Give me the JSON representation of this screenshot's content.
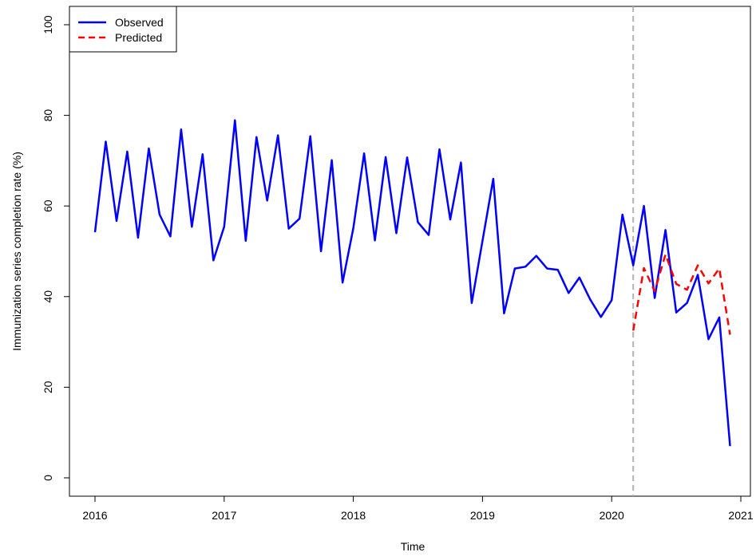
{
  "chart_data": {
    "type": "line",
    "xlabel": "Time",
    "ylabel": "Immunization series completion rate (%)",
    "xlim": [
      2016,
      2021
    ],
    "ylim": [
      0,
      100
    ],
    "x_ticks": [
      "2016",
      "2017",
      "2018",
      "2019",
      "2020",
      "2021"
    ],
    "y_ticks": [
      "0",
      "20",
      "40",
      "60",
      "80",
      "100"
    ],
    "vline": {
      "x": 2020.1667,
      "style": "dashed",
      "color": "#b3b3b3"
    },
    "legend": {
      "position": "top-left"
    },
    "series": [
      {
        "name": "Observed",
        "color": "#0000ff",
        "style": "solid",
        "x": [
          2016.0,
          2016.0833,
          2016.1667,
          2016.25,
          2016.3333,
          2016.4167,
          2016.5,
          2016.5833,
          2016.6667,
          2016.75,
          2016.8333,
          2016.9167,
          2017.0,
          2017.0833,
          2017.1667,
          2017.25,
          2017.3333,
          2017.4167,
          2017.5,
          2017.5833,
          2017.6667,
          2017.75,
          2017.8333,
          2017.9167,
          2018.0,
          2018.0833,
          2018.1667,
          2018.25,
          2018.3333,
          2018.4167,
          2018.5,
          2018.5833,
          2018.6667,
          2018.75,
          2018.8333,
          2018.9167,
          2019.0,
          2019.0833,
          2019.1667,
          2019.25,
          2019.3333,
          2019.4167,
          2019.5,
          2019.5833,
          2019.6667,
          2019.75,
          2019.8333,
          2019.9167,
          2020.0,
          2020.0833,
          2020.1667,
          2020.25,
          2020.3333,
          2020.4167,
          2020.5,
          2020.5833,
          2020.6667,
          2020.75,
          2020.8333,
          2020.9167
        ],
        "y": [
          54.2,
          74.2,
          56.7,
          72.0,
          53.0,
          72.7,
          58.1,
          53.3,
          76.9,
          55.4,
          71.4,
          48.0,
          55.4,
          78.9,
          52.3,
          75.2,
          61.2,
          75.6,
          55.0,
          57.2,
          75.4,
          50.0,
          70.1,
          43.1,
          55.1,
          71.6,
          52.4,
          70.8,
          54.0,
          70.7,
          56.4,
          53.6,
          72.5,
          57.0,
          69.6,
          38.6,
          52.3,
          66.0,
          36.3,
          46.2,
          46.6,
          49.0,
          46.2,
          45.9,
          40.8,
          44.2,
          39.4,
          35.5,
          39.2,
          58.1,
          46.9,
          60.0,
          39.7,
          54.7,
          36.5,
          38.6,
          44.8,
          30.6,
          35.4,
          7.0
        ]
      },
      {
        "name": "Predicted",
        "color": "#ff0000",
        "style": "dashed",
        "x": [
          2020.1667,
          2020.25,
          2020.3333,
          2020.4167,
          2020.5,
          2020.5833,
          2020.6667,
          2020.75,
          2020.8333,
          2020.9167
        ],
        "y": [
          32.5,
          46.3,
          41.2,
          49.3,
          42.8,
          41.5,
          46.9,
          42.9,
          46.2,
          31.6
        ]
      }
    ]
  }
}
